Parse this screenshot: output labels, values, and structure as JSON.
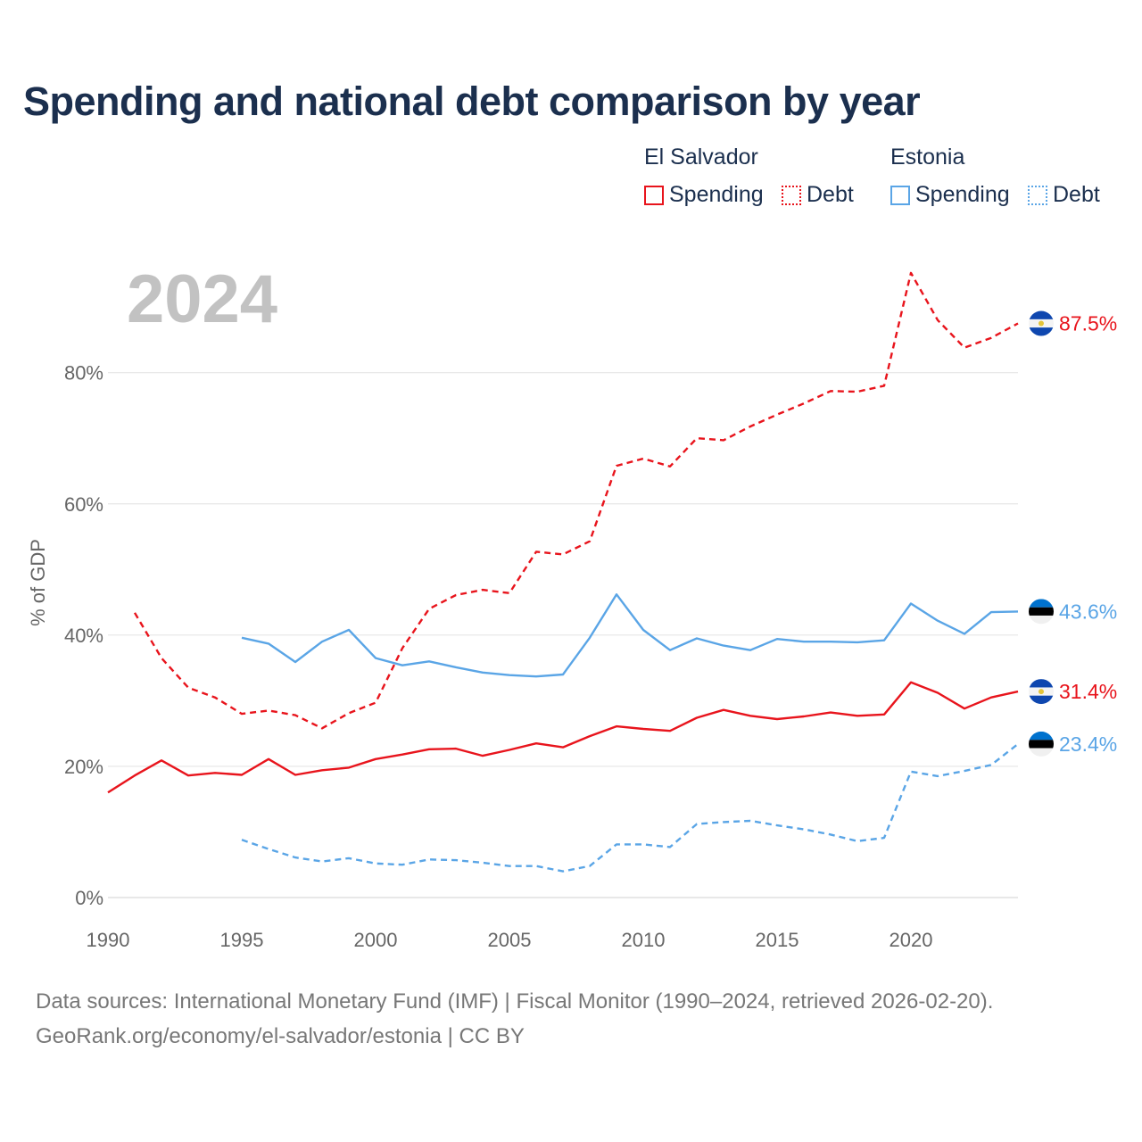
{
  "title": "Spending and national debt comparison by year",
  "legend": {
    "groups": [
      {
        "country": "El Salvador",
        "color": "#e8141c",
        "items": [
          {
            "label": "Spending",
            "style": "solid"
          },
          {
            "label": "Debt",
            "style": "dotted"
          }
        ]
      },
      {
        "country": "Estonia",
        "color": "#5aa5e6",
        "items": [
          {
            "label": "Spending",
            "style": "solid"
          },
          {
            "label": "Debt",
            "style": "dotted"
          }
        ]
      }
    ]
  },
  "year_label": "2024",
  "source_lines": [
    "Data sources: International Monetary Fund (IMF) | Fiscal Monitor (1990–2024, retrieved 2026-02-20).",
    "GeoRank.org/economy/el-salvador/estonia | CC BY"
  ],
  "chart_data": {
    "type": "line",
    "title": "Spending and national debt comparison by year",
    "xlabel": "",
    "ylabel": "% of GDP",
    "xlim": [
      1990,
      2024
    ],
    "ylim": [
      0,
      96
    ],
    "xticks": [
      1990,
      1995,
      2000,
      2005,
      2010,
      2015,
      2020
    ],
    "yticks": [
      0,
      20,
      40,
      60,
      80
    ],
    "ytick_labels": [
      "0%",
      "20%",
      "40%",
      "60%",
      "80%"
    ],
    "grid": true,
    "series": [
      {
        "name": "El Salvador Spending",
        "key": "sv-spending",
        "country": "El Salvador",
        "color": "#e8141c",
        "dash": "solid",
        "end_label": "31.4%",
        "flag": "el-salvador",
        "x": [
          1990,
          1991,
          1992,
          1993,
          1994,
          1995,
          1996,
          1997,
          1998,
          1999,
          2000,
          2001,
          2002,
          2003,
          2004,
          2005,
          2006,
          2007,
          2008,
          2009,
          2010,
          2011,
          2012,
          2013,
          2014,
          2015,
          2016,
          2017,
          2018,
          2019,
          2020,
          2021,
          2022,
          2023,
          2024
        ],
        "values": [
          16.0,
          18.6,
          20.9,
          18.6,
          19.0,
          18.7,
          21.1,
          18.7,
          19.4,
          19.8,
          21.1,
          21.8,
          22.6,
          22.7,
          21.6,
          22.5,
          23.5,
          22.9,
          24.6,
          26.1,
          25.7,
          25.4,
          27.4,
          28.6,
          27.7,
          27.2,
          27.6,
          28.2,
          27.7,
          27.9,
          32.8,
          31.2,
          28.8,
          30.5,
          31.4
        ]
      },
      {
        "name": "El Salvador Debt",
        "key": "sv-debt",
        "country": "El Salvador",
        "color": "#e8141c",
        "dash": "dashed",
        "end_label": "87.5%",
        "flag": "el-salvador",
        "x": [
          1991,
          1992,
          1993,
          1994,
          1995,
          1996,
          1997,
          1998,
          1999,
          2000,
          2001,
          2002,
          2003,
          2004,
          2005,
          2006,
          2007,
          2008,
          2009,
          2010,
          2011,
          2012,
          2013,
          2014,
          2015,
          2016,
          2017,
          2018,
          2019,
          2020,
          2021,
          2022,
          2023,
          2024
        ],
        "values": [
          43.4,
          36.5,
          32.0,
          30.5,
          28.0,
          28.5,
          27.8,
          25.8,
          28.1,
          29.7,
          38.0,
          44.0,
          46.1,
          46.9,
          46.4,
          52.7,
          52.3,
          54.3,
          65.8,
          66.9,
          65.7,
          70.0,
          69.7,
          71.8,
          73.6,
          75.3,
          77.2,
          77.1,
          78.0,
          95.2,
          88.0,
          83.8,
          85.3,
          87.5
        ]
      },
      {
        "name": "Estonia Spending",
        "key": "ee-spending",
        "country": "Estonia",
        "color": "#5aa5e6",
        "dash": "solid",
        "end_label": "43.6%",
        "flag": "estonia",
        "x": [
          1995,
          1996,
          1997,
          1998,
          1999,
          2000,
          2001,
          2002,
          2003,
          2004,
          2005,
          2006,
          2007,
          2008,
          2009,
          2010,
          2011,
          2012,
          2013,
          2014,
          2015,
          2016,
          2017,
          2018,
          2019,
          2020,
          2021,
          2022,
          2023,
          2024
        ],
        "values": [
          39.6,
          38.7,
          35.9,
          39.0,
          40.8,
          36.5,
          35.4,
          36.0,
          35.1,
          34.3,
          33.9,
          33.7,
          34.0,
          39.6,
          46.2,
          40.8,
          37.7,
          39.5,
          38.4,
          37.7,
          39.4,
          39.0,
          39.0,
          38.9,
          39.2,
          44.8,
          42.2,
          40.2,
          43.5,
          43.6
        ]
      },
      {
        "name": "Estonia Debt",
        "key": "ee-debt",
        "country": "Estonia",
        "color": "#5aa5e6",
        "dash": "dashed",
        "end_label": "23.4%",
        "flag": "estonia",
        "x": [
          1995,
          1996,
          1997,
          1998,
          1999,
          2000,
          2001,
          2002,
          2003,
          2004,
          2005,
          2006,
          2007,
          2008,
          2009,
          2010,
          2011,
          2012,
          2013,
          2014,
          2015,
          2016,
          2017,
          2018,
          2019,
          2020,
          2021,
          2022,
          2023,
          2024
        ],
        "values": [
          8.8,
          7.4,
          6.1,
          5.5,
          6.0,
          5.2,
          5.0,
          5.8,
          5.7,
          5.3,
          4.8,
          4.8,
          4.0,
          4.8,
          8.1,
          8.1,
          7.7,
          11.2,
          11.5,
          11.7,
          11.0,
          10.4,
          9.6,
          8.6,
          9.1,
          19.2,
          18.5,
          19.3,
          20.2,
          23.4
        ]
      }
    ]
  }
}
